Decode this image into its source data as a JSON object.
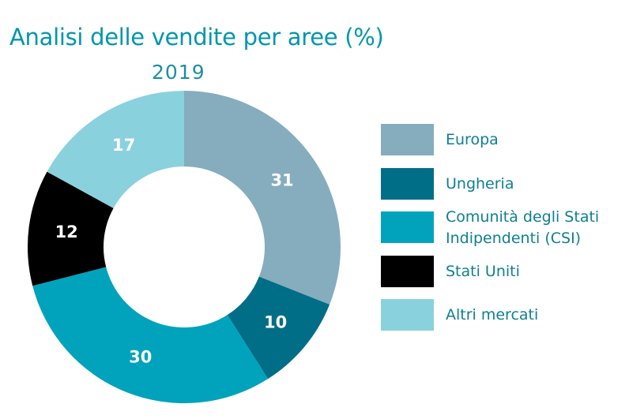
{
  "title": "Analisi delle vendite per aree (%)",
  "subtitle": "2019",
  "chart_data": {
    "type": "pie",
    "variant": "donut",
    "title": "Analisi delle vendite per aree (%)",
    "subtitle": "2019",
    "categories": [
      "Europa",
      "Ungheria",
      "Comunità degli Stati Indipendenti (CSI)",
      "Stati Uniti",
      "Altri mercati"
    ],
    "values": [
      31,
      10,
      30,
      12,
      17
    ],
    "labels": [
      "31",
      "10",
      "30",
      "12",
      "17"
    ],
    "colors": [
      "#85adbd",
      "#006e87",
      "#00a3bb",
      "#000000",
      "#8ad1de"
    ],
    "label_colors": [
      "#ffffff",
      "#ffffff",
      "#ffffff",
      "#ffffff",
      "#ffffff"
    ],
    "legend_position": "right"
  },
  "legend": [
    {
      "label": "Europa",
      "color": "#85adbd"
    },
    {
      "label": "Ungheria",
      "color": "#006e87"
    },
    {
      "label": "Comunità degli Stati\nIndipendenti (CSI)",
      "color": "#00a3bb"
    },
    {
      "label": "Stati Uniti",
      "color": "#000000"
    },
    {
      "label": "Altri mercati",
      "color": "#8ad1de"
    }
  ]
}
